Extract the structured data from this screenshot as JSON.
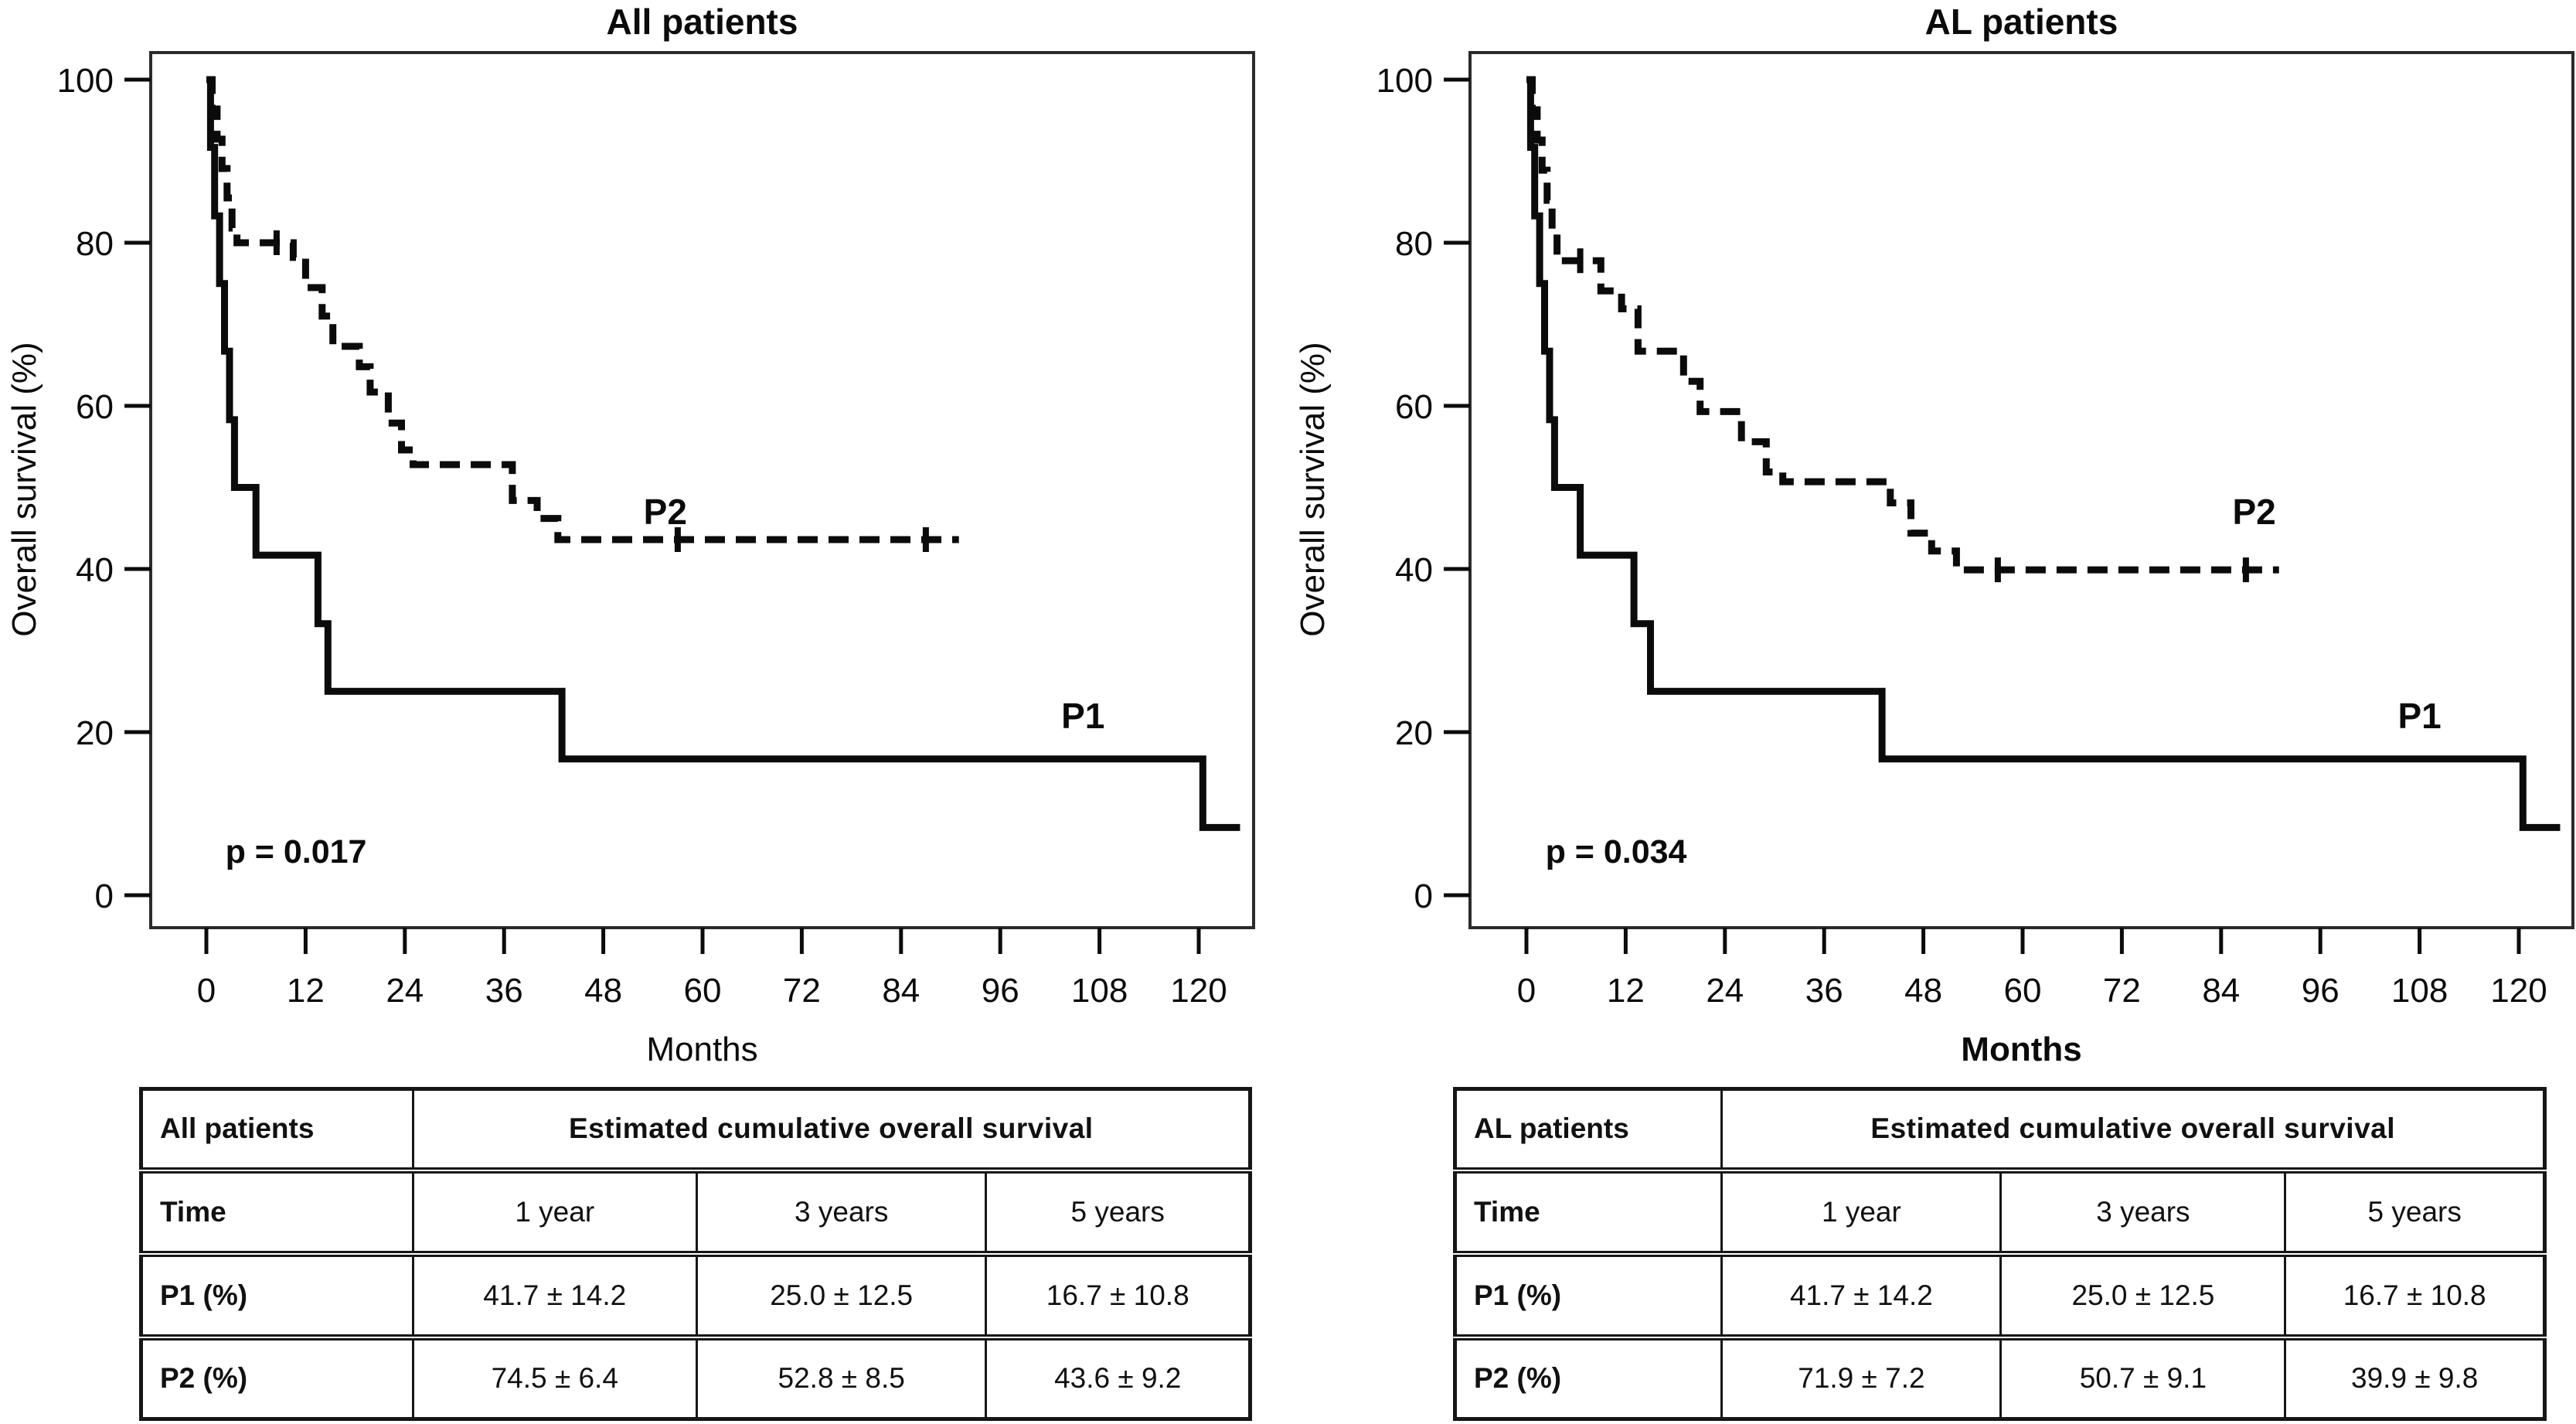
{
  "panels": [
    {
      "table": {
        "corner": "All patients",
        "span_header": "Estimated cumulative overall survival",
        "rows": [
          {
            "label": "Time",
            "cells": [
              "1 year",
              "3 years",
              "5 years"
            ]
          },
          {
            "label": "P1 (%)",
            "cells": [
              "41.7 ± 14.2",
              "25.0 ± 12.5",
              "16.7 ± 10.8"
            ]
          },
          {
            "label": "P2 (%)",
            "cells": [
              "74.5 ± 6.4",
              "52.8 ± 8.5",
              "43.6 ± 9.2"
            ]
          }
        ]
      }
    },
    {
      "table": {
        "corner": "AL patients",
        "span_header": "Estimated cumulative overall survival",
        "rows": [
          {
            "label": "Time",
            "cells": [
              "1 year",
              "3 years",
              "5 years"
            ]
          },
          {
            "label": "P1 (%)",
            "cells": [
              "41.7 ± 14.2",
              "25.0 ± 12.5",
              "16.7 ± 10.8"
            ]
          },
          {
            "label": "P2 (%)",
            "cells": [
              "71.9 ± 7.2",
              "50.7 ± 9.1",
              "39.9 ± 9.8"
            ]
          }
        ]
      }
    }
  ],
  "chart_data": [
    {
      "type": "line",
      "variant": "kaplan-meier-step",
      "title": "All patients",
      "xlabel": "Months",
      "xlabel_bold": false,
      "ylabel": "Overall survival (%)",
      "xlim": [
        0,
        126
      ],
      "ylim": [
        0,
        100
      ],
      "x_ticks": [
        0,
        12,
        24,
        36,
        48,
        60,
        72,
        84,
        96,
        108,
        120
      ],
      "y_ticks": [
        0,
        20,
        40,
        60,
        80,
        100
      ],
      "grid": false,
      "annotation": {
        "text": "p = 0.017",
        "t": 2.3,
        "pct": 4
      },
      "series": [
        {
          "name": "P1",
          "style": "solid",
          "label_pos": {
            "t": 106,
            "pct": 22
          },
          "points": [
            [
              0,
              100
            ],
            [
              0.5,
              91.7
            ],
            [
              1,
              83.3
            ],
            [
              1.6,
              75
            ],
            [
              2.2,
              66.7
            ],
            [
              2.8,
              58.3
            ],
            [
              3.4,
              50
            ],
            [
              6,
              41.7
            ],
            [
              13.5,
              33.3
            ],
            [
              14.7,
              25
            ],
            [
              43,
              16.7
            ],
            [
              120.5,
              8.3
            ],
            [
              125,
              8.3
            ]
          ],
          "censor_ticks": []
        },
        {
          "name": "P2",
          "style": "dashed",
          "label_pos": {
            "t": 55.5,
            "pct": 47
          },
          "points": [
            [
              0,
              100
            ],
            [
              0.7,
              96.4
            ],
            [
              1.3,
              92.7
            ],
            [
              1.9,
              89.1
            ],
            [
              2.5,
              85.5
            ],
            [
              3.1,
              81.8
            ],
            [
              3.7,
              80
            ],
            [
              10.5,
              78.2
            ],
            [
              12,
              74.5
            ],
            [
              14,
              71
            ],
            [
              15.3,
              67.3
            ],
            [
              18.5,
              64.8
            ],
            [
              19.8,
              61.7
            ],
            [
              22,
              57.9
            ],
            [
              23.6,
              54.6
            ],
            [
              25,
              52.8
            ],
            [
              37,
              48.4
            ],
            [
              40,
              46.2
            ],
            [
              42.5,
              43.6
            ],
            [
              91,
              43.6
            ]
          ],
          "censor_ticks": [
            [
              8.5,
              80
            ],
            [
              57,
              43.6
            ],
            [
              87,
              43.6
            ]
          ]
        }
      ]
    },
    {
      "type": "line",
      "variant": "kaplan-meier-step",
      "title": "AL patients",
      "xlabel": "Months",
      "xlabel_bold": true,
      "ylabel": "Overall survival (%)",
      "xlim": [
        0,
        126
      ],
      "ylim": [
        0,
        100
      ],
      "x_ticks": [
        0,
        12,
        24,
        36,
        48,
        60,
        72,
        84,
        96,
        108,
        120
      ],
      "y_ticks": [
        0,
        20,
        40,
        60,
        80,
        100
      ],
      "grid": false,
      "annotation": {
        "text": "p = 0.034",
        "t": 2.3,
        "pct": 4
      },
      "series": [
        {
          "name": "P1",
          "style": "solid",
          "label_pos": {
            "t": 108,
            "pct": 22
          },
          "points": [
            [
              0,
              100
            ],
            [
              0.5,
              91.7
            ],
            [
              1,
              83.3
            ],
            [
              1.6,
              75
            ],
            [
              2.2,
              66.7
            ],
            [
              2.8,
              58.3
            ],
            [
              3.4,
              50
            ],
            [
              6.5,
              41.7
            ],
            [
              13,
              33.3
            ],
            [
              15,
              25
            ],
            [
              43,
              16.7
            ],
            [
              120.5,
              8.3
            ],
            [
              125,
              8.3
            ]
          ],
          "censor_ticks": []
        },
        {
          "name": "P2",
          "style": "dashed",
          "label_pos": {
            "t": 88,
            "pct": 47
          },
          "points": [
            [
              0,
              100
            ],
            [
              0.7,
              96.3
            ],
            [
              1.3,
              92.6
            ],
            [
              1.9,
              88.9
            ],
            [
              2.5,
              85.2
            ],
            [
              3.1,
              81.5
            ],
            [
              3.7,
              77.8
            ],
            [
              9,
              74.1
            ],
            [
              11.5,
              71.9
            ],
            [
              13.5,
              66.7
            ],
            [
              19,
              63
            ],
            [
              21,
              59.3
            ],
            [
              26,
              55.6
            ],
            [
              29,
              51.9
            ],
            [
              31,
              50.7
            ],
            [
              44,
              48.1
            ],
            [
              46.5,
              44.4
            ],
            [
              49,
              42.2
            ],
            [
              52,
              39.9
            ],
            [
              91,
              39.9
            ]
          ],
          "censor_ticks": [
            [
              6.5,
              77.8
            ],
            [
              57,
              39.9
            ],
            [
              87,
              39.9
            ]
          ]
        }
      ]
    }
  ]
}
